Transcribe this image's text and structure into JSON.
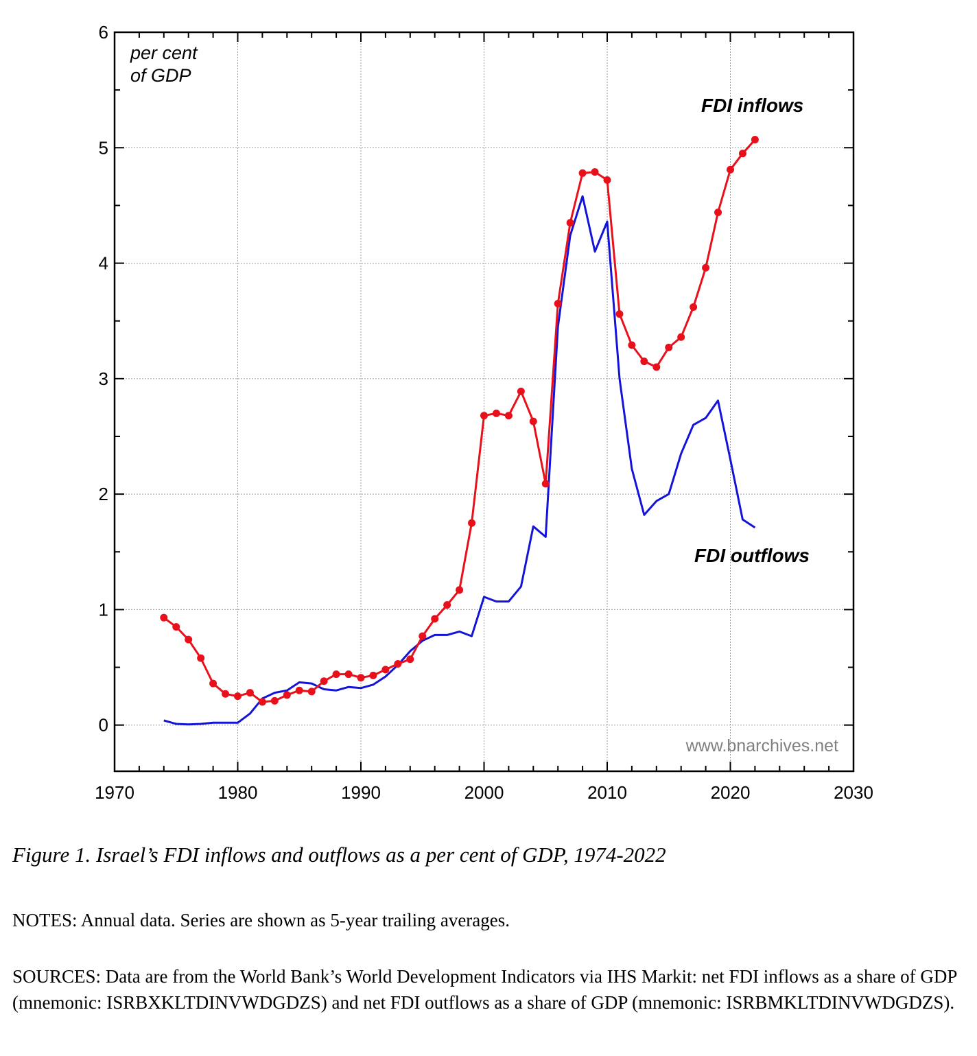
{
  "chart_data": {
    "type": "line",
    "unit_label_line1": "per cent",
    "unit_label_line2": "of GDP",
    "xlim": [
      1970,
      2030
    ],
    "ylim": [
      -0.4,
      6
    ],
    "x_ticks": [
      1970,
      1980,
      1990,
      2000,
      2010,
      2020,
      2030
    ],
    "y_ticks": [
      0,
      1,
      2,
      3,
      4,
      5,
      6
    ],
    "grid": true,
    "watermark": "www.bnarchives.net",
    "series": [
      {
        "name": "FDI inflows",
        "color": "#e8111b",
        "markers": true,
        "x": [
          1974,
          1975,
          1976,
          1977,
          1978,
          1979,
          1980,
          1981,
          1982,
          1983,
          1984,
          1985,
          1986,
          1987,
          1988,
          1989,
          1990,
          1991,
          1992,
          1993,
          1994,
          1995,
          1996,
          1997,
          1998,
          1999,
          2000,
          2001,
          2002,
          2003,
          2004,
          2005,
          2006,
          2007,
          2008,
          2009,
          2010,
          2011,
          2012,
          2013,
          2014,
          2015,
          2016,
          2017,
          2018,
          2019,
          2020,
          2021,
          2022
        ],
        "values": [
          0.93,
          0.85,
          0.74,
          0.58,
          0.36,
          0.27,
          0.25,
          0.28,
          0.2,
          0.21,
          0.26,
          0.3,
          0.29,
          0.38,
          0.44,
          0.44,
          0.41,
          0.43,
          0.48,
          0.53,
          0.57,
          0.77,
          0.92,
          1.04,
          1.17,
          1.75,
          2.68,
          2.7,
          2.68,
          2.89,
          2.63,
          2.09,
          3.65,
          4.35,
          4.78,
          4.79,
          4.72,
          3.56,
          3.29,
          3.15,
          3.1,
          3.27,
          3.36,
          3.62,
          3.96,
          4.44,
          4.81,
          4.95,
          5.07
        ]
      },
      {
        "name": "FDI outflows",
        "color": "#1414d8",
        "markers": false,
        "x": [
          1974,
          1975,
          1976,
          1977,
          1978,
          1979,
          1980,
          1981,
          1982,
          1983,
          1984,
          1985,
          1986,
          1987,
          1988,
          1989,
          1990,
          1991,
          1992,
          1993,
          1994,
          1995,
          1996,
          1997,
          1998,
          1999,
          2000,
          2001,
          2002,
          2003,
          2004,
          2005,
          2006,
          2007,
          2008,
          2009,
          2010,
          2011,
          2012,
          2013,
          2014,
          2015,
          2016,
          2017,
          2018,
          2019,
          2020,
          2021,
          2022
        ],
        "values": [
          0.04,
          0.01,
          0.005,
          0.01,
          0.02,
          0.02,
          0.02,
          0.1,
          0.23,
          0.28,
          0.3,
          0.37,
          0.36,
          0.31,
          0.3,
          0.33,
          0.32,
          0.35,
          0.42,
          0.52,
          0.64,
          0.73,
          0.78,
          0.78,
          0.81,
          0.77,
          1.11,
          1.07,
          1.07,
          1.2,
          1.72,
          1.63,
          3.45,
          4.24,
          4.58,
          4.1,
          4.36,
          3.0,
          2.22,
          1.82,
          1.94,
          2.0,
          2.35,
          2.6,
          2.66,
          2.81,
          2.3,
          1.78,
          1.71
        ]
      }
    ]
  },
  "caption": "Figure 1. Israel’s FDI inflows and outflows as a per cent of GDP, 1974-2022",
  "notes": "NOTES: Annual data. Series are shown as 5-year trailing averages.",
  "sources": "SOURCES: Data are from the World Bank’s World Development Indicators via IHS Markit: net FDI inflows as a share of GDP (mnemonic: ISRBXKLTDINVWDGDZS) and net FDI outflows as a share of GDP (mnemonic: ISRBMKLTDINVWDGDZS)."
}
